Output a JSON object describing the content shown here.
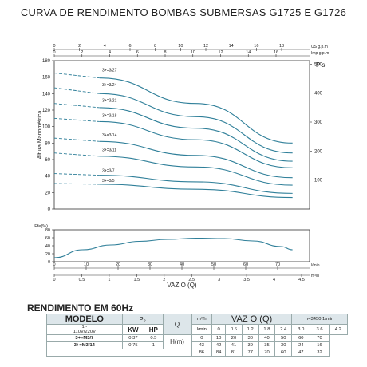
{
  "title": "CURVA DE RENDIMENTO BOMBAS SUBMERSAS G1725 E G1726",
  "chart_data": [
    {
      "type": "line",
      "subplot": "head",
      "ylabel": "Altura Manométrica",
      "ylim": [
        0,
        180
      ],
      "yticks": [
        0,
        20,
        40,
        60,
        80,
        100,
        120,
        140,
        160,
        180
      ],
      "right_axis": {
        "label": "P s",
        "ticks": [
          100,
          200,
          300,
          400,
          500
        ]
      },
      "top_axes": [
        {
          "label": "US g.p.m",
          "ticks": [
            0,
            2,
            4,
            6,
            8,
            10,
            12,
            14,
            16,
            18
          ]
        },
        {
          "label": "Imp g.p.m",
          "ticks": [
            0,
            2,
            4,
            6,
            8,
            10,
            12,
            14,
            16
          ]
        }
      ],
      "xlim": [
        0,
        4.5
      ],
      "series": [
        {
          "name": "3+=3/27",
          "x": [
            0,
            0.8,
            2.5,
            4.2
          ],
          "y": [
            165,
            159,
            128,
            80
          ]
        },
        {
          "name": "3+=3/24",
          "x": [
            0,
            0.8,
            2.5,
            4.2
          ],
          "y": [
            147,
            140,
            112,
            68
          ]
        },
        {
          "name": "3+=3/21",
          "x": [
            0,
            0.8,
            2.5,
            4.2
          ],
          "y": [
            128,
            123,
            98,
            58
          ]
        },
        {
          "name": "3+=3/18",
          "x": [
            0,
            0.8,
            2.5,
            4.2
          ],
          "y": [
            110,
            106,
            84,
            50
          ]
        },
        {
          "name": "3+=3/14",
          "x": [
            0,
            0.8,
            2.5,
            4.2
          ],
          "y": [
            86,
            82,
            65,
            38
          ]
        },
        {
          "name": "3+=3/11",
          "x": [
            0,
            0.8,
            2.5,
            4.2
          ],
          "y": [
            68,
            64,
            51,
            29
          ]
        },
        {
          "name": "3+=3/7",
          "x": [
            0,
            0.8,
            2.5,
            4.2
          ],
          "y": [
            43,
            41,
            33,
            19
          ]
        },
        {
          "name": "3+=3/5",
          "x": [
            0,
            0.8,
            2.5,
            4.2
          ],
          "y": [
            31,
            30,
            24,
            14
          ]
        }
      ]
    },
    {
      "type": "line",
      "subplot": "efficiency",
      "ylabel": "Efe(%)",
      "ylim": [
        0,
        80
      ],
      "yticks": [
        0,
        20,
        40,
        60,
        80
      ],
      "x_axes": [
        {
          "label": "l/min",
          "ticks": [
            0,
            10,
            20,
            30,
            40,
            50,
            60,
            70
          ]
        },
        {
          "label": "m³/h",
          "ticks": [
            0,
            0.5,
            1,
            1.5,
            2,
            2.5,
            3,
            3.5,
            4,
            4.5
          ]
        }
      ],
      "xlabel": "VAZ  O (Q)",
      "xlim": [
        0,
        4.5
      ],
      "series": [
        {
          "name": "Efe",
          "x": [
            0,
            0.5,
            1.0,
            1.5,
            2.0,
            2.5,
            3.0,
            3.5,
            4.0,
            4.2
          ],
          "y": [
            10,
            30,
            42,
            51,
            56,
            59,
            58,
            52,
            38,
            30
          ]
        }
      ]
    }
  ],
  "perf": {
    "title": "RENDIMENTO EM 60Hz",
    "modelo": "MODELO",
    "p2": "P₂",
    "q": "Q",
    "h": "H(m)",
    "vazao": "VAZ  O (Q)",
    "rpm": "n=3450 1/min",
    "sub_model": "1 -",
    "voltage": "110V/220V",
    "kw": "KW",
    "hp": "HP",
    "unit_m3h": "m³/h",
    "unit_lmin": "l/min",
    "m3h_values": [
      "0",
      "0.6",
      "1.2",
      "1.8",
      "2.4",
      "3.0",
      "3.6",
      "4.2"
    ],
    "lmin_values": [
      "0",
      "10",
      "20",
      "30",
      "40",
      "50",
      "60",
      "70"
    ],
    "rows": [
      {
        "model": "3+=M3/7",
        "kw": "0.37",
        "hp": "0.5",
        "h": [
          "43",
          "42",
          "41",
          "39",
          "35",
          "30",
          "24",
          "16"
        ]
      },
      {
        "model": "3+=M3/14",
        "kw": "0.75",
        "hp": "1",
        "h": [
          "86",
          "84",
          "81",
          "77",
          "70",
          "60",
          "47",
          "32"
        ]
      }
    ]
  }
}
